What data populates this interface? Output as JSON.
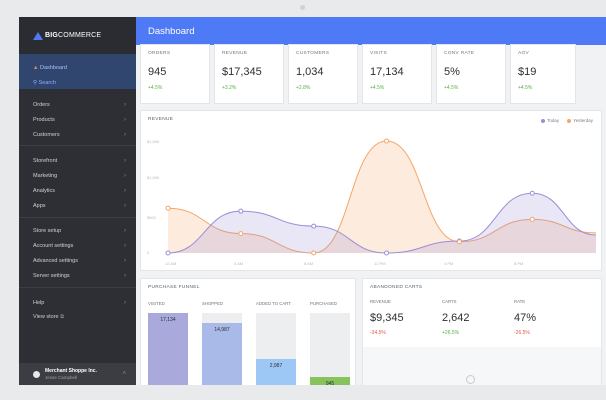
{
  "brand": {
    "logo_prefix": "BIG",
    "logo_suffix": "COMMERCE"
  },
  "sidebar": {
    "top": [
      {
        "label": "Dashboard",
        "icon": "home-icon"
      },
      {
        "label": "Search",
        "icon": "search-icon"
      }
    ],
    "group1": [
      "Orders",
      "Products",
      "Customers"
    ],
    "group2": [
      "Storefront",
      "Marketing",
      "Analytics",
      "Apps"
    ],
    "group3": [
      "Store setup",
      "Account settings",
      "Advanced settings",
      "Server settings"
    ],
    "group4": [
      "Help",
      "View store"
    ],
    "merchant": {
      "name": "Merchant Shoppe Inc.",
      "user": "Jesse Campbell"
    }
  },
  "header": {
    "title": "Dashboard"
  },
  "metrics": [
    {
      "label": "ORDERS",
      "value": "945",
      "change": "+4.5%"
    },
    {
      "label": "REVENUE",
      "value": "$17,345",
      "change": "+3.2%"
    },
    {
      "label": "CUSTOMERS",
      "value": "1,034",
      "change": "+2.8%"
    },
    {
      "label": "VISITS",
      "value": "17,134",
      "change": "+4.5%"
    },
    {
      "label": "CONV RATE",
      "value": "5%",
      "change": "+4.5%"
    },
    {
      "label": "AOV",
      "value": "$19",
      "change": "+4.5%"
    }
  ],
  "revenue_panel": {
    "title": "REVENUE",
    "legend_today": "Today",
    "legend_yesterday": "Yesterday",
    "colors": {
      "today": "#9b8fd6",
      "yesterday": "#f4a66a"
    }
  },
  "chart_data": {
    "type": "area",
    "title": "REVENUE",
    "x": [
      "12 AM",
      "4 AM",
      "8 AM",
      "12 PM",
      "4 PM",
      "8 PM"
    ],
    "y_ticks": [
      "$1,500",
      "$1,000",
      "$500",
      "0"
    ],
    "ylim": [
      0,
      1500
    ],
    "series": [
      {
        "name": "Today",
        "x": [
          0,
          4,
          8,
          12,
          16,
          20,
          23.5
        ],
        "values": [
          0,
          560,
          360,
          0,
          160,
          800,
          240
        ]
      },
      {
        "name": "Yesterday",
        "x": [
          0,
          4,
          8,
          12,
          16,
          20,
          23.5
        ],
        "values": [
          600,
          260,
          0,
          1500,
          150,
          450,
          270
        ]
      }
    ],
    "legend": "top-right",
    "grid": false
  },
  "funnel": {
    "title": "PURCHASE FUNNEL",
    "stages": [
      {
        "label": "VISITED",
        "value": "17,134",
        "fraction": 1.0,
        "color": "#a9a9dc"
      },
      {
        "label": "SHOPPED",
        "value": "14,987",
        "fraction": 0.87,
        "color": "#a9b9e8"
      },
      {
        "label": "ADDED TO CART",
        "value": "2,987",
        "fraction": 0.4,
        "color": "#9dc8f5"
      },
      {
        "label": "PURCHASED",
        "value": "945",
        "fraction": 0.16,
        "color": "#86c35a"
      }
    ]
  },
  "abandoned": {
    "title": "ABANDONED CARTS",
    "stats": [
      {
        "label": "REVENUE",
        "value": "$9,345",
        "change": "-34.5%",
        "color": "#e2574c"
      },
      {
        "label": "CARTS",
        "value": "2,642",
        "change": "+26.5%",
        "color": "#57b046"
      },
      {
        "label": "RATE",
        "value": "47%",
        "change": "-26.5%",
        "color": "#e2574c"
      }
    ]
  }
}
